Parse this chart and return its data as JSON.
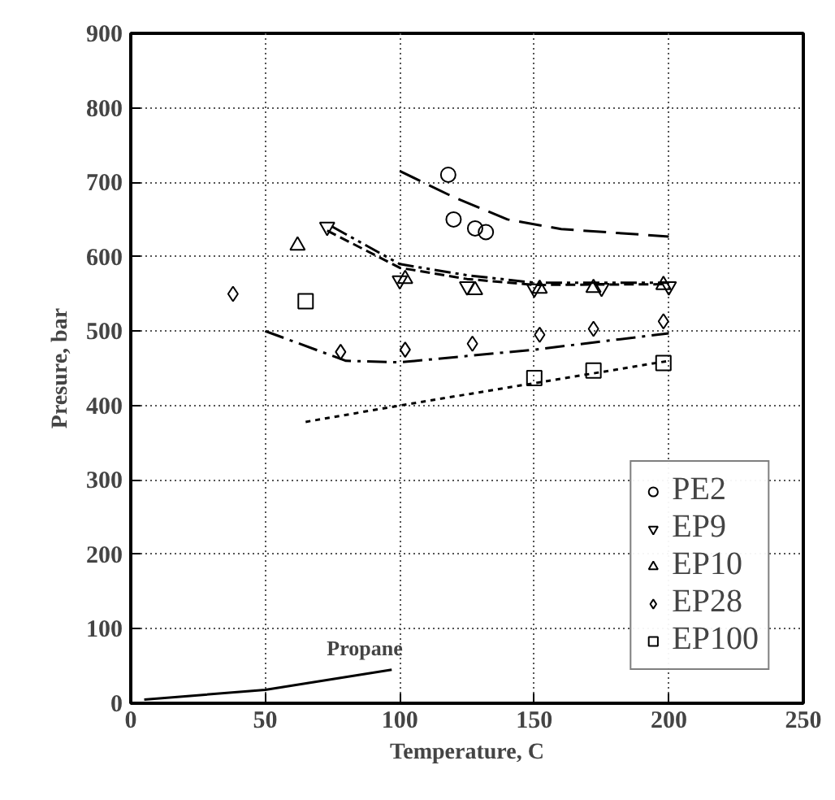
{
  "chart_data": {
    "type": "scatter",
    "xlabel": "Temperature, C",
    "ylabel": "Presure, bar",
    "xlim": [
      0,
      250
    ],
    "ylim": [
      0,
      900
    ],
    "xticks": [
      0,
      50,
      100,
      150,
      200,
      250
    ],
    "yticks": [
      0,
      100,
      200,
      300,
      400,
      500,
      600,
      700,
      800,
      900
    ],
    "grid": true,
    "legend": "bottom right",
    "annotations": [
      {
        "text": "Propane",
        "x": 97,
        "y": 45
      }
    ],
    "series": [
      {
        "name": "PE2",
        "color": "#000000",
        "marker": "circle",
        "x": [
          118,
          120,
          128,
          132
        ],
        "values": [
          710,
          650,
          638,
          633
        ]
      },
      {
        "name": "EP9",
        "color": "#000000",
        "marker": "triangle_down",
        "x": [
          73,
          100,
          125,
          150,
          175,
          200
        ],
        "values": [
          640,
          568,
          560,
          557,
          558,
          560
        ]
      },
      {
        "name": "EP10",
        "color": "#000000",
        "marker": "triangle",
        "x": [
          62,
          102,
          128,
          152,
          172,
          198
        ],
        "values": [
          615,
          570,
          555,
          557,
          558,
          562
        ]
      },
      {
        "name": "EP28",
        "color": "#000000",
        "marker": "diamond",
        "x": [
          38,
          78,
          102,
          127,
          152,
          172,
          198
        ],
        "values": [
          550,
          472,
          475,
          483,
          495,
          503,
          513
        ]
      },
      {
        "name": "EP100",
        "color": "#000000",
        "marker": "square",
        "x": [
          65,
          150,
          172,
          198
        ],
        "values": [
          540,
          437,
          447,
          457
        ]
      },
      {
        "type": "line",
        "color": "#000000",
        "line_style": "long_dash",
        "x": [
          100,
          120,
          140,
          160,
          200
        ],
        "values": [
          715,
          680,
          650,
          637,
          627
        ]
      },
      {
        "type": "line",
        "color": "#000000",
        "line_style": "dashed",
        "x": [
          73,
          100,
          125,
          150,
          200
        ],
        "values": [
          635,
          585,
          570,
          562,
          563
        ]
      },
      {
        "type": "line",
        "color": "#000000",
        "line_style": "dash_dot_dot",
        "x": [
          75,
          100,
          125,
          150,
          200
        ],
        "values": [
          640,
          590,
          575,
          565,
          565
        ]
      },
      {
        "type": "line",
        "color": "#000000",
        "line_style": "dash_dot",
        "x": [
          50,
          80,
          100,
          150,
          200
        ],
        "values": [
          500,
          460,
          458,
          475,
          497
        ]
      },
      {
        "type": "line",
        "color": "#000000",
        "line_style": "dotted",
        "x": [
          65,
          100,
          150,
          200
        ],
        "values": [
          378,
          400,
          430,
          460
        ]
      },
      {
        "type": "line",
        "color": "#000000",
        "line_style": "solid",
        "x": [
          5,
          50,
          97
        ],
        "values": [
          5,
          18,
          45
        ]
      }
    ]
  }
}
